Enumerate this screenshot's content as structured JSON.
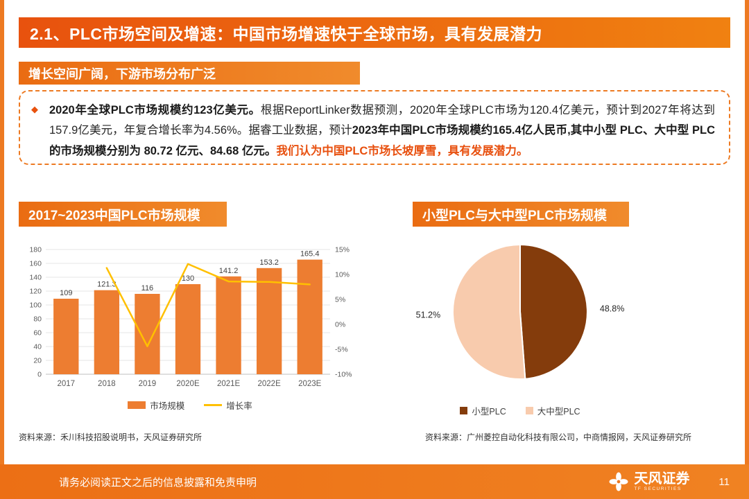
{
  "page": {
    "title": "2.1、PLC市场空间及增速：中国市场增速快于全球市场，具有发展潜力",
    "section_badge": "增长空间广阔，下游市场分布广泛",
    "bullet_icon": "◆",
    "footer": {
      "disclaimer": "请务必阅读正文之后的信息披露和免责申明",
      "brand": "天风证券",
      "brand_sub": "TF SECURITIES",
      "page_number": "11"
    }
  },
  "summary_segments": [
    {
      "text": "2020年全球PLC市场规模约123亿美元。",
      "bold": true,
      "color": "#1a1a1a"
    },
    {
      "text": "根据ReportLinker数据预测，2020年全球PLC市场为120.4亿美元，预计到2027年将达到157.9亿美元，年复合增长率为4.56%。据睿工业数据，预计",
      "bold": false,
      "color": "#262626"
    },
    {
      "text": "2023年中国PLC市场规模约165.4亿人民币,其中小型 PLC、大中型 PLC 的市场规模分别为 80.72 亿元、84.68 亿元。",
      "bold": true,
      "color": "#1a1a1a"
    },
    {
      "text": "我们认为中国PLC市场长坡厚雪，具有发展潜力。",
      "bold": true,
      "color": "#E8500F"
    }
  ],
  "left_panel": {
    "title": "2017~2023中国PLC市场规模",
    "source": "资料来源：禾川科技招股说明书，天风证券研究所"
  },
  "right_panel": {
    "title": "小型PLC与大中型PLC市场规模",
    "source": "资料来源：广州菱控自动化科技有限公司，中商情报网，天风证券研究所"
  },
  "chart_data": [
    {
      "type": "bar",
      "subtype": "bar+line-combo",
      "title": "2017~2023中国PLC市场规模",
      "categories": [
        "2017",
        "2018",
        "2019",
        "2020E",
        "2021E",
        "2022E",
        "2023E"
      ],
      "series": [
        {
          "name": "市场规模",
          "type": "bar",
          "color": "#ED7D31",
          "axis": "left",
          "values": [
            109,
            121.3,
            116,
            130,
            141.2,
            153.2,
            165.4
          ],
          "labels": [
            "109",
            "121.3",
            "116",
            "130",
            "141.2",
            "153.2",
            "165.4"
          ]
        },
        {
          "name": "增长率",
          "type": "line",
          "color": "#FFC000",
          "axis": "right",
          "x_start_index": 1,
          "values": [
            11.3,
            -4.4,
            12.1,
            8.6,
            8.5,
            8.0
          ]
        }
      ],
      "left_axis": {
        "min": 0,
        "max": 180,
        "step": 20,
        "suffix": ""
      },
      "right_axis": {
        "min": -10,
        "max": 15,
        "step": 5,
        "suffix": "%"
      },
      "grid": true,
      "legend_position": "bottom"
    },
    {
      "type": "pie",
      "title": "小型PLC与大中型PLC市场规模",
      "slices": [
        {
          "name": "小型PLC",
          "value": 48.8,
          "label": "48.8%",
          "color": "#843C0C"
        },
        {
          "name": "大中型PLC",
          "value": 51.2,
          "label": "51.2%",
          "color": "#F8CBAD"
        }
      ],
      "legend_position": "bottom"
    }
  ],
  "colors": {
    "accent": "#ED7A22",
    "header_gradient_start": "#E8520E",
    "header_gradient_end": "#F08111",
    "bar": "#ED7D31",
    "line": "#FFC000",
    "pie_dark": "#843C0C",
    "pie_light": "#F8CBAD"
  }
}
